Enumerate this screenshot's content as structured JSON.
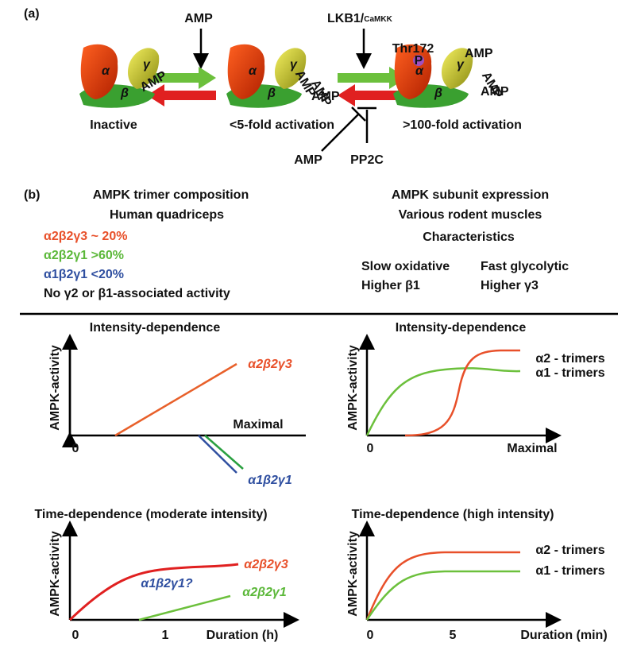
{
  "panel_a": {
    "label": "(a)",
    "amp_in": "AMP",
    "kinase": "LKB1/",
    "kinase_sub": "CaMKK",
    "thr": "Thr172",
    "phospho": "P",
    "states": [
      "Inactive",
      "<5-fold activation",
      ">100-fold activation"
    ],
    "subunits": [
      "α",
      "β",
      "γ"
    ],
    "bound": "AMP",
    "amp_out": "AMP",
    "phosphatase": "PP2C"
  },
  "panel_b": {
    "label": "(b)",
    "left_title": "AMPK trimer composition",
    "left_subtitle": "Human quadriceps",
    "composition": [
      "α2β2γ3 ~ 20%",
      "α2β2γ1 >60%",
      "α1β2γ1 <20%",
      "No γ2 or β1-associated activity"
    ],
    "right_title": "AMPK subunit expression",
    "right_subtitle": "Various rodent muscles",
    "characteristics": "Characteristics",
    "fibers": [
      "Slow oxidative",
      "Fast glycolytic"
    ],
    "features": [
      "Higher β1",
      "Higher γ3"
    ]
  },
  "graphs": [
    {
      "title": "Intensity-dependence",
      "y_label": "AMPK-activity",
      "x_labels": [
        "0",
        "Maximal"
      ],
      "curves": [
        "α2β2γ3",
        "α1β2γ1"
      ]
    },
    {
      "title": "Intensity-dependence",
      "y_label": "AMPK-activity",
      "x_labels": [
        "0",
        "Maximal"
      ],
      "curves": [
        "α2 - trimers",
        "α1 - trimers"
      ]
    },
    {
      "title": "Time-dependence (moderate intensity)",
      "y_label": "AMPK-activity",
      "x_labels": [
        "0",
        "1",
        "Duration (h)"
      ],
      "curves": [
        "α2β2γ3",
        "α1β2γ1?",
        "α2β2γ1"
      ]
    },
    {
      "title": "Time-dependence (high intensity)",
      "y_label": "AMPK-activity",
      "x_labels": [
        "0",
        "5",
        "Duration (min)"
      ],
      "curves": [
        "α2 - trimers",
        "α1 - trimers"
      ]
    }
  ]
}
